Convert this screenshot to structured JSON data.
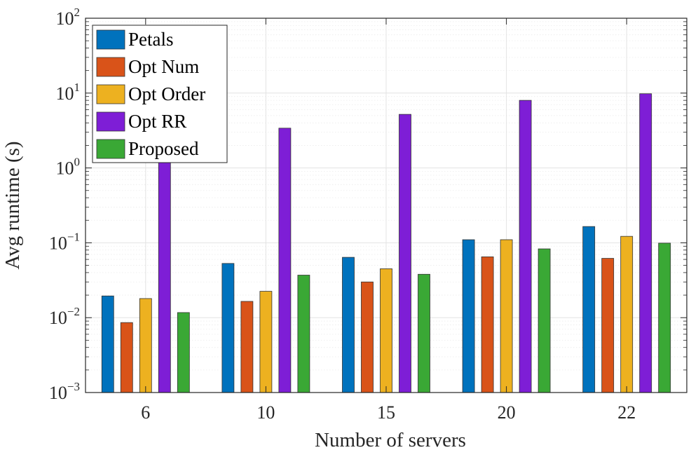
{
  "chart_data": {
    "type": "bar",
    "xlabel": "Number of servers",
    "ylabel": "Avg runtime (s)",
    "yscale": "log",
    "ylim": [
      0.001,
      100
    ],
    "grid": true,
    "legend_position": "top-left",
    "categories": [
      "6",
      "10",
      "15",
      "20",
      "22"
    ],
    "y_ticks": [
      {
        "base": "10",
        "exp": "−3",
        "value": 0.001
      },
      {
        "base": "10",
        "exp": "−2",
        "value": 0.01
      },
      {
        "base": "10",
        "exp": "−1",
        "value": 0.1
      },
      {
        "base": "10",
        "exp": "0",
        "value": 1
      },
      {
        "base": "10",
        "exp": "1",
        "value": 10
      },
      {
        "base": "10",
        "exp": "2",
        "value": 100
      }
    ],
    "series": [
      {
        "name": "Petals",
        "color": "#0072BD",
        "values": [
          0.0195,
          0.053,
          0.064,
          0.11,
          0.165
        ]
      },
      {
        "name": "Opt Num",
        "color": "#D95319",
        "values": [
          0.0086,
          0.0165,
          0.03,
          0.065,
          0.062
        ]
      },
      {
        "name": "Opt Order",
        "color": "#EDB120",
        "values": [
          0.018,
          0.0225,
          0.045,
          0.11,
          0.122
        ]
      },
      {
        "name": "Opt RR",
        "color": "#7E1ED6",
        "values": [
          1.3,
          3.4,
          5.2,
          8.0,
          9.8
        ]
      },
      {
        "name": "Proposed",
        "color": "#3AA835",
        "values": [
          0.0117,
          0.037,
          0.038,
          0.083,
          0.099
        ]
      }
    ]
  }
}
